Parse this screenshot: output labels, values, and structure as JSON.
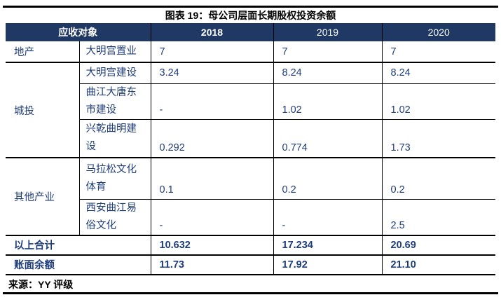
{
  "figure": {
    "title": "图表 19：母公司层面长期股权投资余额",
    "source": "来源：YY 评级"
  },
  "colors": {
    "header_bg": "#1F3864",
    "body_text": "#1F3D7A",
    "border": "#000000"
  },
  "chart_data": {
    "type": "table",
    "title": "图表 19：母公司层面长期股权投资余额",
    "columns": [
      "应收对象",
      "",
      "2018",
      "2019",
      "2020"
    ],
    "groups": [
      {
        "category": "地产",
        "rows": [
          {
            "name": "大明宫置业",
            "values": [
              "7",
              "7",
              "7"
            ]
          }
        ]
      },
      {
        "category": "城投",
        "rows": [
          {
            "name": "大明宫建设",
            "values": [
              "3.24",
              "8.24",
              "8.24"
            ]
          },
          {
            "name": "曲江大唐东市建设",
            "values": [
              "-",
              "1.02",
              "1.02"
            ]
          },
          {
            "name": "兴乾曲明建设",
            "values": [
              "0.292",
              "0.774",
              "1.73"
            ]
          }
        ]
      },
      {
        "category": "其他产业",
        "rows": [
          {
            "name": "马拉松文化体育",
            "values": [
              "0.1",
              "0.2",
              "0.2"
            ]
          },
          {
            "name": "西安曲江易俗文化",
            "values": [
              "-",
              "-",
              "2.5"
            ]
          }
        ]
      }
    ],
    "totals": [
      {
        "label": "以上合计",
        "values": [
          "10.632",
          "17.234",
          "20.69"
        ]
      },
      {
        "label": "账面余额",
        "values": [
          "11.73",
          "17.92",
          "21.10"
        ]
      }
    ]
  },
  "table": {
    "header": {
      "col1": "应收对象",
      "y2018": "2018",
      "y2019": "2019",
      "y2020": "2020"
    }
  }
}
